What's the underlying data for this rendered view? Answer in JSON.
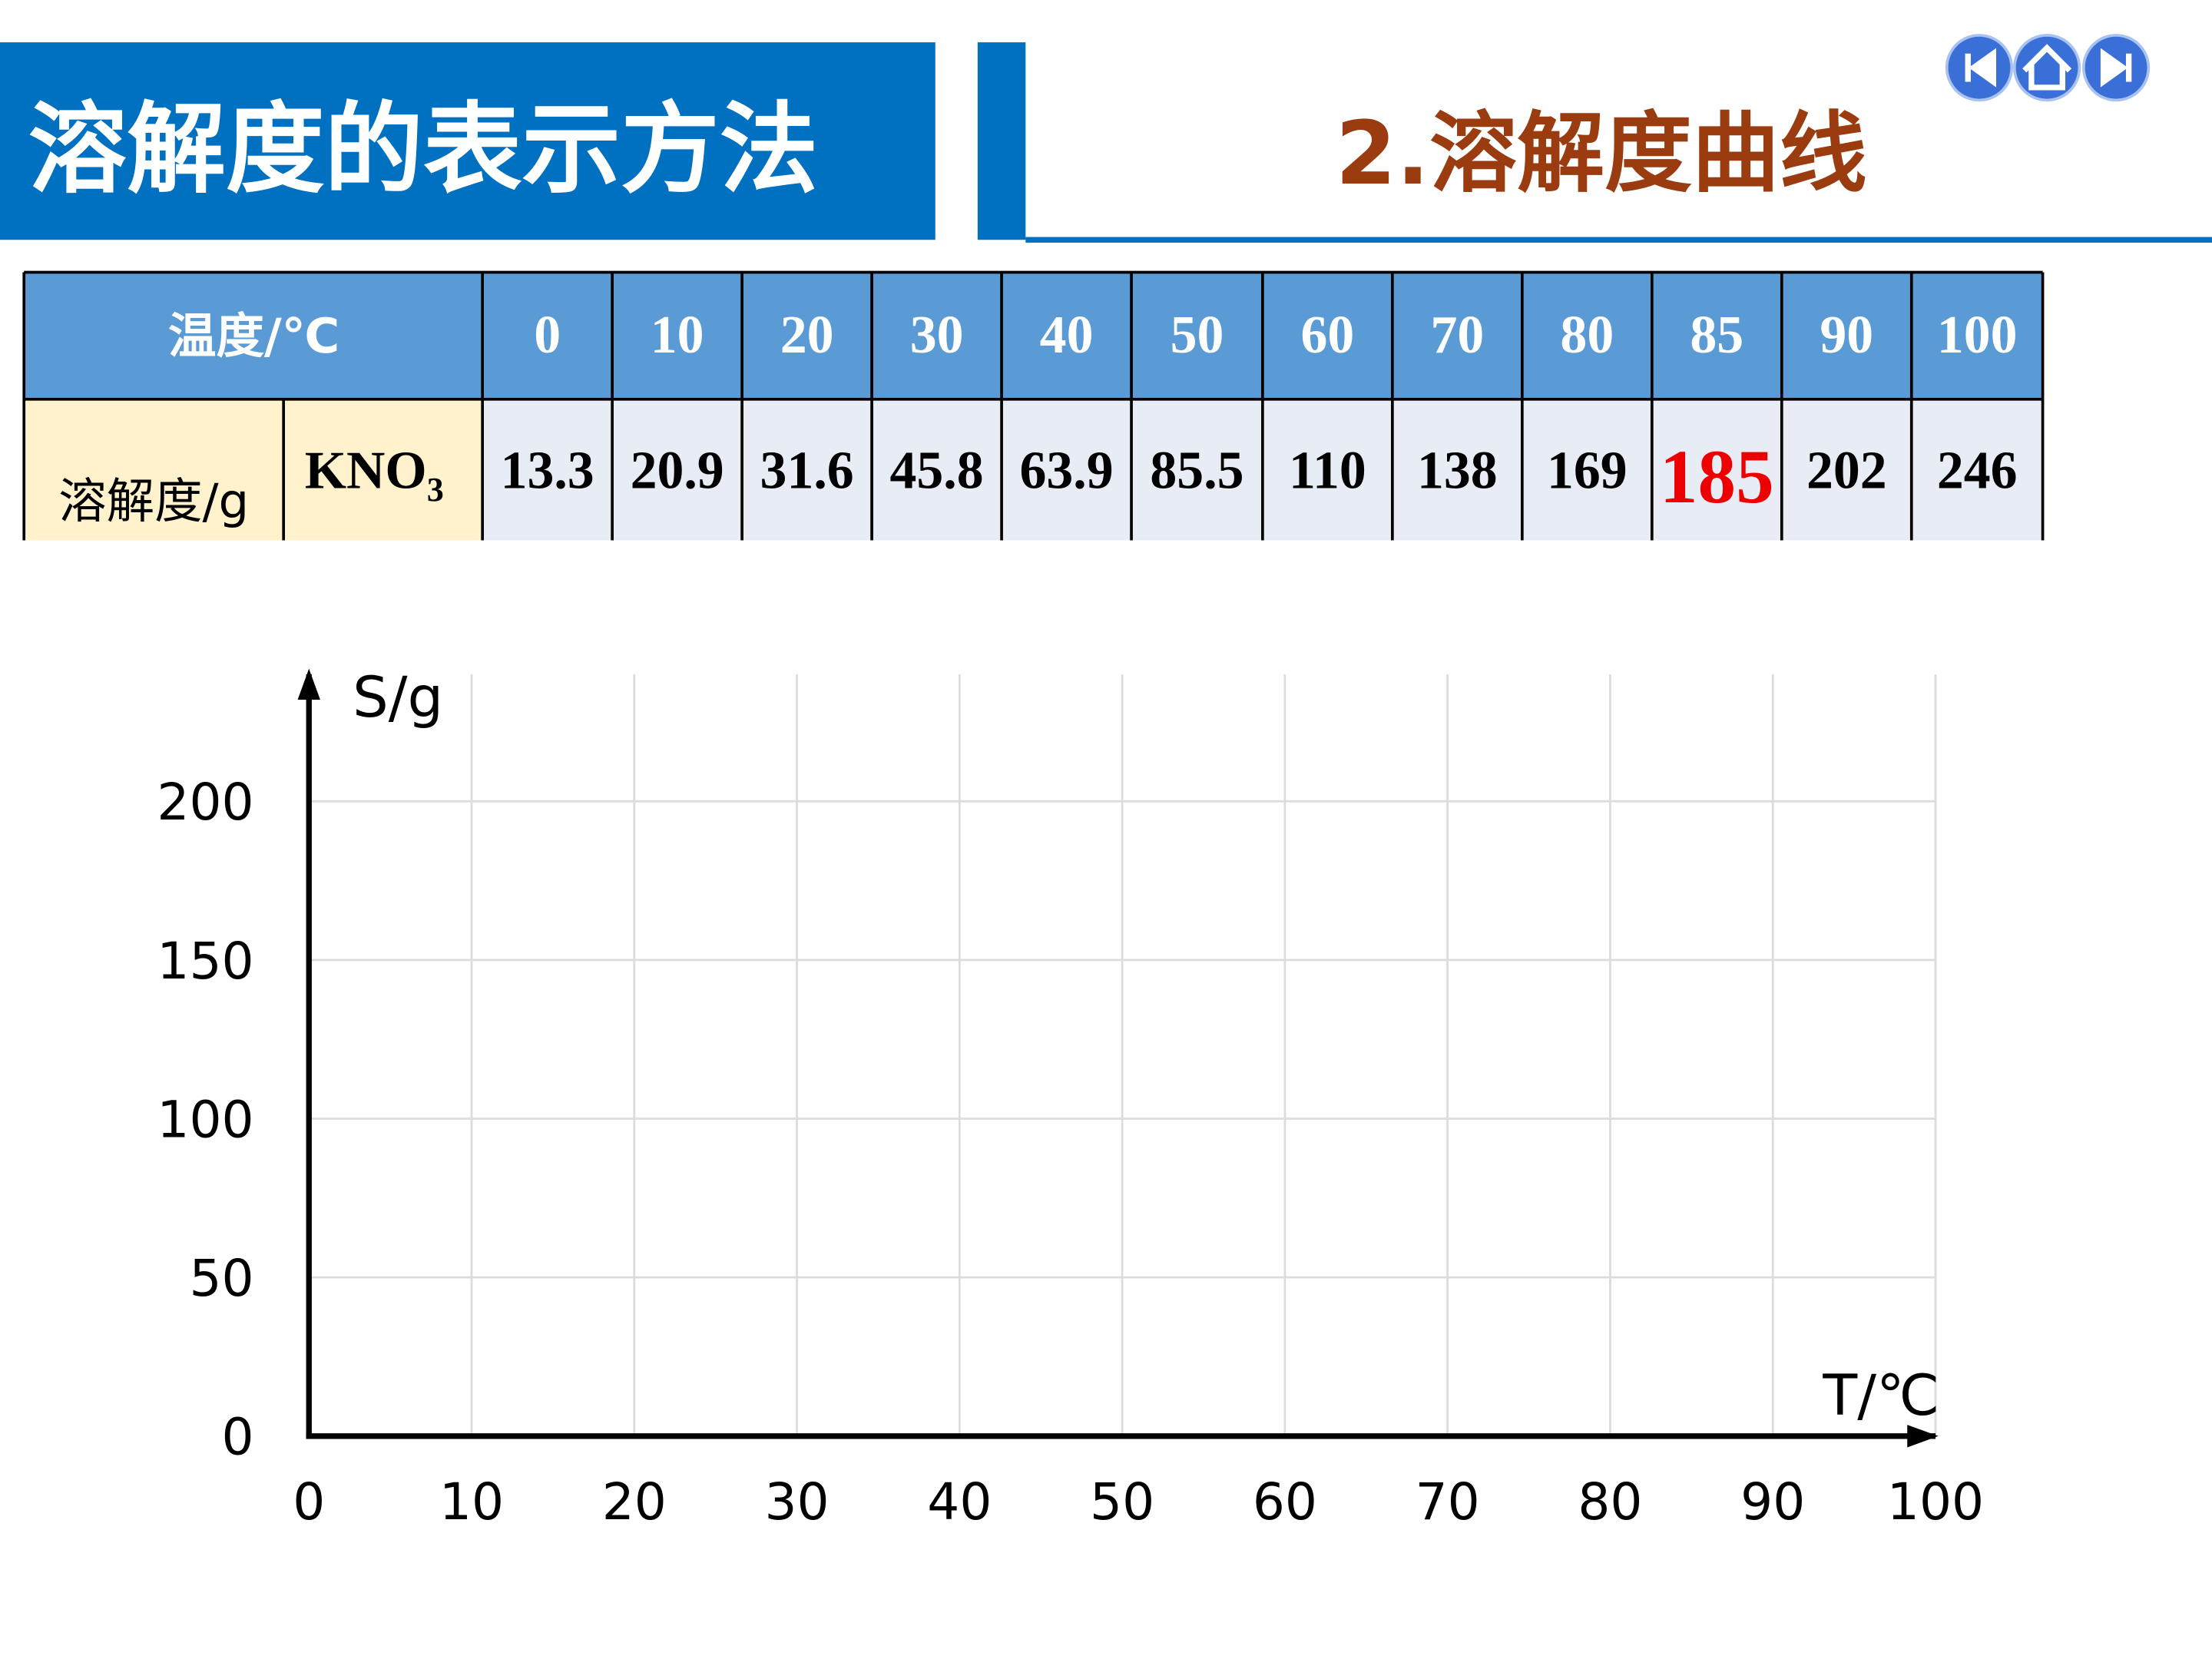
{
  "header": {
    "title": "溶解度的表示方法",
    "subtitle": "2.溶解度曲线"
  },
  "table": {
    "header_label": "温度/℃",
    "temperatures": [
      0,
      10,
      20,
      30,
      40,
      50,
      60,
      70,
      80,
      85,
      90,
      100
    ],
    "row_label": "溶解度/g",
    "substance": {
      "text": "KNO",
      "subscript": "3"
    },
    "values": [
      13.3,
      20.9,
      31.6,
      45.8,
      63.9,
      85.5,
      110,
      138,
      169,
      185,
      202,
      246
    ],
    "highlight_color": "#ee0000"
  },
  "chart_data": {
    "type": "line",
    "ylabel": "S/g",
    "xlabel": "T/℃",
    "xlim": [
      0,
      100
    ],
    "ylim": [
      0,
      240
    ],
    "xticks": [
      0,
      10,
      20,
      30,
      40,
      50,
      60,
      70,
      80,
      90,
      100
    ],
    "yticks": [
      0,
      50,
      100,
      150,
      200
    ],
    "grid": true
  }
}
